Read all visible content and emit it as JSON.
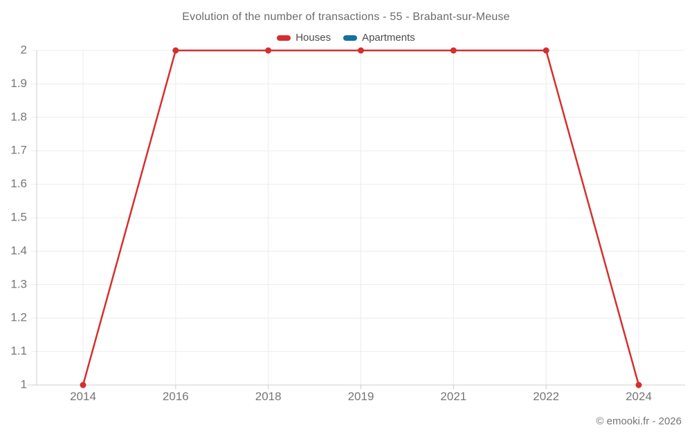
{
  "chart_data": {
    "type": "line",
    "title": "Evolution of the number of transactions - 55 - Brabant-sur-Meuse",
    "categories": [
      "2014",
      "2016",
      "2018",
      "2019",
      "2021",
      "2022",
      "2024"
    ],
    "series": [
      {
        "name": "Houses",
        "color": "#d62e2e",
        "values": [
          1,
          2,
          2,
          2,
          2,
          2,
          1
        ]
      },
      {
        "name": "Apartments",
        "color": "#15719f",
        "values": []
      }
    ],
    "ylim": [
      1,
      2
    ],
    "y_ticks": [
      1,
      1.1,
      1.2,
      1.3,
      1.4,
      1.5,
      1.6,
      1.7,
      1.8,
      1.9,
      2
    ],
    "y_tick_labels": [
      "1",
      "1.1",
      "1.2",
      "1.3",
      "1.4",
      "1.5",
      "1.6",
      "1.7",
      "1.8",
      "1.9",
      "2"
    ],
    "grid": true,
    "legend_position": "top",
    "colors": {
      "gridline": "#ececec",
      "axis": "#cccccc",
      "tick_label": "#757575"
    }
  },
  "footer": {
    "copyright": "© emooki.fr - 2026"
  }
}
